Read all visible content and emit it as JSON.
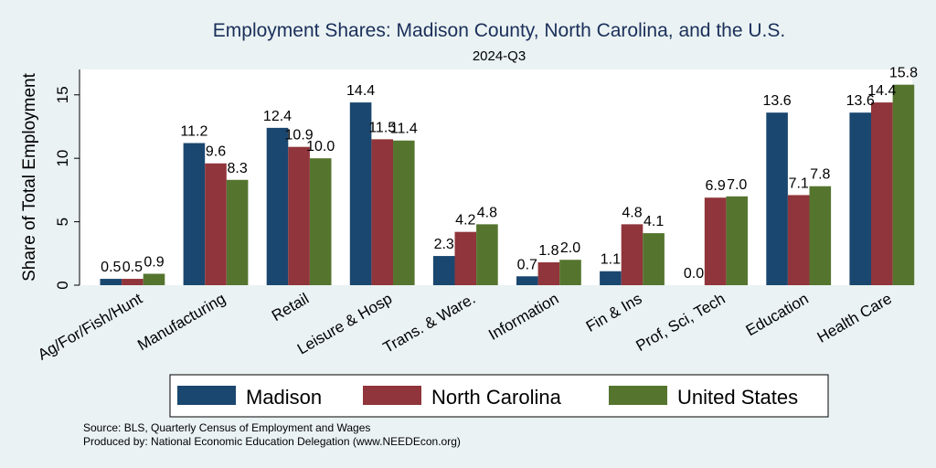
{
  "chart_data": {
    "type": "bar",
    "title": "Employment Shares: Madison County, North Carolina, and the U.S.",
    "subtitle": "2024-Q3",
    "xlabel": "",
    "ylabel": "Share of Total Employment",
    "ylim": [
      0,
      17
    ],
    "yticks": [
      0,
      5,
      10,
      15
    ],
    "categories": [
      "Ag/For/Fish/Hunt",
      "Manufacturing",
      "Retail",
      "Leisure & Hosp",
      "Trans. & Ware.",
      "Information",
      "Fin & Ins",
      "Prof, Sci, Tech",
      "Education",
      "Health Care"
    ],
    "series": [
      {
        "name": "Madison",
        "color": "#1a476f",
        "values": [
          0.5,
          11.2,
          12.4,
          14.4,
          2.3,
          0.7,
          1.1,
          0.0,
          13.6,
          13.6
        ],
        "labels": [
          "0.5",
          "11.2",
          "12.4",
          "14.4",
          "2.3",
          "0.7",
          "1.1",
          "0.0",
          "13.6",
          "13.6"
        ]
      },
      {
        "name": "North Carolina",
        "color": "#90353b",
        "values": [
          0.5,
          9.6,
          10.9,
          11.5,
          4.2,
          1.8,
          4.8,
          6.9,
          7.1,
          14.4
        ],
        "labels": [
          "0.5",
          "9.6",
          "10.9",
          "11.5",
          "4.2",
          "1.8",
          "4.8",
          "6.9",
          "7.1",
          "14.4"
        ]
      },
      {
        "name": "United States",
        "color": "#55752f",
        "values": [
          0.9,
          8.3,
          10.0,
          11.4,
          4.8,
          2.0,
          4.1,
          7.0,
          7.8,
          15.8
        ],
        "labels": [
          "0.9",
          "8.3",
          "10.0",
          "11.4",
          "4.8",
          "2.0",
          "4.1",
          "7.0",
          "7.8",
          "15.8"
        ]
      }
    ],
    "legend": "bottom",
    "grid": false
  },
  "notes": {
    "source": "Source: BLS, Quarterly Census of Employment and Wages",
    "produced_by": "Produced by: National Economic Education Delegation (www.NEEDEcon.org)"
  },
  "colors": {
    "background": "#eaf2f3",
    "plot_background": "#ffffff",
    "title": "#1a2f5a"
  }
}
